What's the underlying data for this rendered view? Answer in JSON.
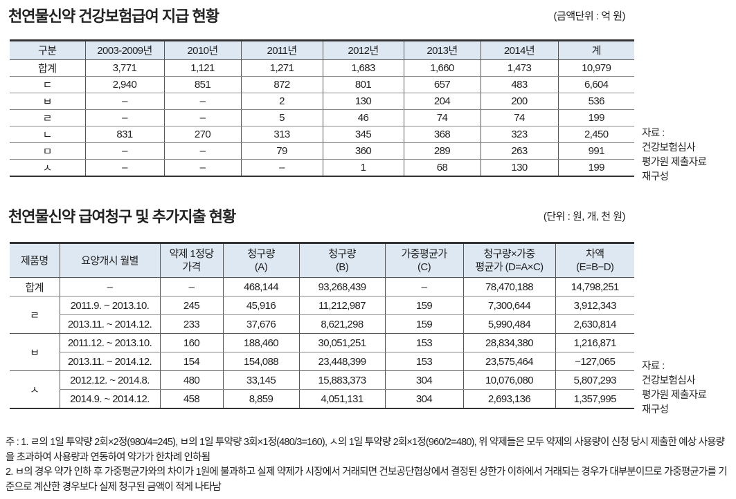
{
  "table1": {
    "title": "천연물신약 건강보험급여 지급 현황",
    "unit": "(금액단위 : 억 원)",
    "headers": [
      "구분",
      "2003-2009년",
      "2010년",
      "2011년",
      "2012년",
      "2013년",
      "2014년",
      "계"
    ],
    "rows": [
      [
        "합계",
        "3,771",
        "1,121",
        "1,271",
        "1,683",
        "1,660",
        "1,473",
        "10,979"
      ],
      [
        "ㄷ",
        "2,940",
        "851",
        "872",
        "801",
        "657",
        "483",
        "6,604"
      ],
      [
        "ㅂ",
        "–",
        "–",
        "2",
        "130",
        "204",
        "200",
        "536"
      ],
      [
        "ㄹ",
        "–",
        "–",
        "5",
        "46",
        "74",
        "74",
        "199"
      ],
      [
        "ㄴ",
        "831",
        "270",
        "313",
        "345",
        "368",
        "323",
        "2,450"
      ],
      [
        "ㅁ",
        "–",
        "–",
        "79",
        "360",
        "289",
        "263",
        "991"
      ],
      [
        "ㅅ",
        "–",
        "–",
        "–",
        "1",
        "68",
        "130",
        "199"
      ]
    ],
    "source": [
      "자료 :",
      "건강보험심사",
      "평가원 제출자료",
      "재구성"
    ]
  },
  "table2": {
    "title": "천연물신약 급여청구 및 추가지출 현황",
    "unit": "(단위 : 원, 개, 천 원)",
    "headers": [
      [
        "제품명"
      ],
      [
        "요양개시 월별"
      ],
      [
        "약제 1정당",
        "가격"
      ],
      [
        "청구량",
        "(A)"
      ],
      [
        "청구량",
        "(B)"
      ],
      [
        "가중평균가",
        "(C)"
      ],
      [
        "청구량×가중",
        "평균가 (D=A×C)"
      ],
      [
        "차액",
        "(E=B−D)"
      ]
    ],
    "total": [
      "합계",
      "–",
      "–",
      "468,144",
      "93,268,439",
      "–",
      "78,470,188",
      "14,798,251"
    ],
    "groups": [
      {
        "name": "ㄹ",
        "rows": [
          [
            "2011.9. ~ 2013.10.",
            "245",
            "45,916",
            "11,212,987",
            "159",
            "7,300,644",
            "3,912,343"
          ],
          [
            "2013.11. ~ 2014.12.",
            "233",
            "37,676",
            "8,621,298",
            "159",
            "5,990,484",
            "2,630,814"
          ]
        ]
      },
      {
        "name": "ㅂ",
        "rows": [
          [
            "2011.12. ~ 2013.10.",
            "160",
            "188,460",
            "30,051,251",
            "153",
            "28,834,380",
            "1,216,871"
          ],
          [
            "2013.11. ~ 2014.12.",
            "154",
            "154,088",
            "23,448,399",
            "153",
            "23,575,464",
            "−127,065"
          ]
        ]
      },
      {
        "name": "ㅅ",
        "rows": [
          [
            "2012.12. ~ 2014.8.",
            "480",
            "33,145",
            "15,883,373",
            "304",
            "10,076,080",
            "5,807,293"
          ],
          [
            "2014.9. ~ 2014.12.",
            "458",
            "8,859",
            "4,051,131",
            "304",
            "2,693,136",
            "1,357,995"
          ]
        ]
      }
    ],
    "source": [
      "자료 :",
      "건강보험심사",
      "평가원 제출자료",
      "재구성"
    ]
  },
  "notes": [
    "주 : 1. ㄹ의 1일 투약량 2회×2정(980/4=245), ㅂ의 1일 투약량 3회×1정(480/3=160), ㅅ의 1일 투약량 2회×1정(960/2=480), 위 약제들은 모두 약제의 사용량이 신청 당시 제출한 예상 사용량을 초과하여 사용량과 연동하여 약가가 한차례 인하됨",
    "2. ㅂ의 경우 약가 인하 후 가중평균가와의 차이가 1원에 불과하고 실제 약제가 시장에서 거래되면 건보공단협상에서 결정된 상한가 이하에서 거래되는 경우가 대부분이므로 가중평균가를 기준으로 계산한 경우보다 실제 청구된 금액이 적게 나타남"
  ]
}
